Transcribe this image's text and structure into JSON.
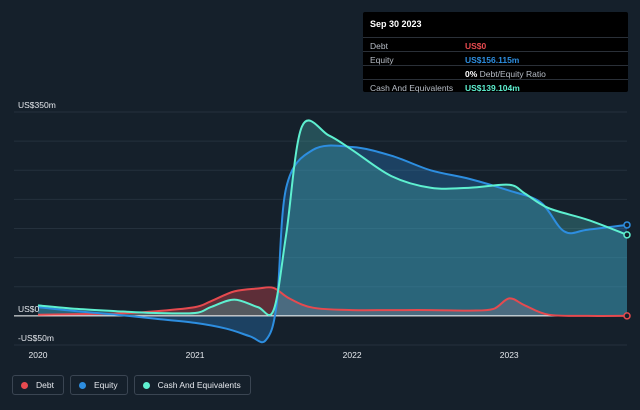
{
  "tooltip": {
    "date": "Sep 30 2023",
    "rows": [
      {
        "label": "Debt",
        "value": "US$0",
        "color": "#e64a4f"
      },
      {
        "label": "Equity",
        "value": "US$156.115m",
        "color": "#2d8ee0"
      },
      {
        "label": "",
        "value": "0%",
        "suffix": " Debt/Equity Ratio",
        "color": "#ffffff"
      },
      {
        "label": "Cash And Equivalents",
        "value": "US$139.104m",
        "color": "#5ef0d0"
      }
    ]
  },
  "legend": [
    {
      "label": "Debt",
      "color": "#e64a4f"
    },
    {
      "label": "Equity",
      "color": "#2d8ee0"
    },
    {
      "label": "Cash And Equivalents",
      "color": "#5ef0d0"
    }
  ],
  "chart_data": {
    "type": "area",
    "y_tick_labels": [
      "US$350m",
      "US$0",
      "-US$50m"
    ],
    "ylim": [
      -50,
      350
    ],
    "x_tick_labels": [
      "2020",
      "2021",
      "2022",
      "2023"
    ],
    "xlim": [
      2020.0,
      2023.75
    ],
    "grid": true,
    "legend_position": "bottom-left",
    "series": [
      {
        "name": "Debt",
        "color": "#e64a4f",
        "x": [
          2020.0,
          2020.25,
          2020.5,
          2020.75,
          2021.0,
          2021.1,
          2021.25,
          2021.4,
          2021.5,
          2021.6,
          2021.75,
          2022.0,
          2022.25,
          2022.5,
          2022.75,
          2022.9,
          2023.0,
          2023.1,
          2023.25,
          2023.5,
          2023.75
        ],
        "y": [
          2,
          3,
          4,
          8,
          15,
          25,
          42,
          47,
          48,
          30,
          14,
          10,
          10,
          10,
          9,
          12,
          30,
          18,
          2,
          0,
          0
        ]
      },
      {
        "name": "Equity",
        "color": "#2d8ee0",
        "x": [
          2020.0,
          2020.25,
          2020.5,
          2020.75,
          2021.0,
          2021.2,
          2021.35,
          2021.45,
          2021.52,
          2021.58,
          2021.75,
          2022.0,
          2022.25,
          2022.5,
          2022.75,
          2023.0,
          2023.2,
          2023.35,
          2023.5,
          2023.75
        ],
        "y": [
          15,
          8,
          2,
          -5,
          -12,
          -22,
          -35,
          -42,
          20,
          220,
          285,
          290,
          275,
          250,
          235,
          215,
          195,
          145,
          148,
          156.115
        ]
      },
      {
        "name": "Cash And Equivalents",
        "color": "#5ef0d0",
        "x": [
          2020.0,
          2020.25,
          2020.5,
          2020.75,
          2021.0,
          2021.1,
          2021.25,
          2021.4,
          2021.5,
          2021.58,
          2021.68,
          2021.85,
          2022.0,
          2022.25,
          2022.5,
          2022.75,
          2023.0,
          2023.1,
          2023.25,
          2023.5,
          2023.75
        ],
        "y": [
          18,
          12,
          8,
          5,
          5,
          15,
          28,
          15,
          10,
          140,
          325,
          310,
          285,
          240,
          220,
          220,
          225,
          210,
          185,
          165,
          139.104
        ]
      }
    ]
  }
}
